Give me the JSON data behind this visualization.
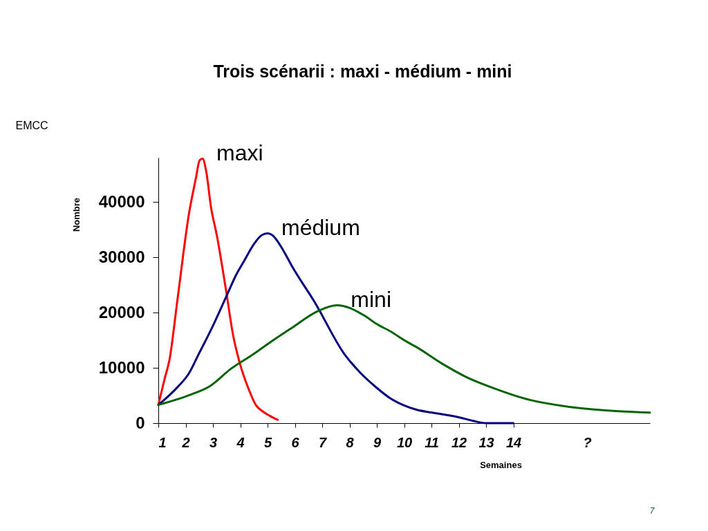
{
  "chart_data": {
    "type": "line",
    "title": "Trois scénarii : maxi - médium - mini",
    "xlabel": "Semaines",
    "ylabel": "Nombre",
    "xlim": [
      1,
      19
    ],
    "xticks": [
      1,
      2,
      3,
      4,
      5,
      6,
      7,
      8,
      9,
      10,
      11,
      12,
      13,
      14,
      {
        "value": 16.7,
        "label": "?"
      }
    ],
    "ylim": [
      0,
      48000
    ],
    "yticks": [
      0,
      10000,
      20000,
      30000,
      40000
    ],
    "line_style": "solid",
    "series": [
      {
        "name": "maxi",
        "color": "#ff0000",
        "x": [
          1,
          1.24,
          1.41,
          1.7,
          2.12,
          2.38,
          2.51,
          2.62,
          2.76,
          2.93,
          3.14,
          3.48,
          3.73,
          3.99,
          4.28,
          4.58,
          4.83,
          5.09,
          5.37
        ],
        "values": [
          3300,
          8200,
          11500,
          22300,
          37800,
          44400,
          47500,
          47800,
          45300,
          39000,
          34000,
          24000,
          16100,
          10700,
          6500,
          3200,
          2100,
          1300,
          600
        ]
      },
      {
        "name": "médium",
        "color": "#000080",
        "x": [
          1,
          1.7,
          2.12,
          2.46,
          2.97,
          3.48,
          3.86,
          4.15,
          4.49,
          4.79,
          5.0,
          5.17,
          5.59,
          5.89,
          6.71,
          7.84,
          8.4,
          8.97,
          9.49,
          10.0,
          10.47,
          11.03,
          11.97,
          12.54,
          13.0,
          13.29,
          14.0
        ],
        "values": [
          3300,
          6500,
          9000,
          12300,
          17300,
          22800,
          26900,
          29400,
          32300,
          34000,
          34300,
          34000,
          31100,
          28400,
          22000,
          12300,
          9100,
          6500,
          4500,
          3200,
          2400,
          1900,
          1100,
          400,
          0,
          0,
          0
        ]
      },
      {
        "name": "mini",
        "color": "#006400",
        "x": [
          1,
          2.21,
          2.89,
          3.65,
          4.49,
          5.09,
          5.85,
          6.86,
          7.54,
          8.02,
          8.59,
          8.97,
          9.53,
          10.0,
          10.47,
          11.41,
          12.25,
          13.29,
          14.6,
          15.83,
          16.68,
          19.0
        ],
        "values": [
          3300,
          5200,
          6700,
          9800,
          12500,
          14600,
          17100,
          20300,
          21300,
          20800,
          19300,
          18000,
          16500,
          15000,
          13700,
          10700,
          8400,
          6300,
          4200,
          3100,
          2600,
          1900
        ]
      }
    ],
    "annotations": [
      "EMCC",
      "7"
    ]
  }
}
